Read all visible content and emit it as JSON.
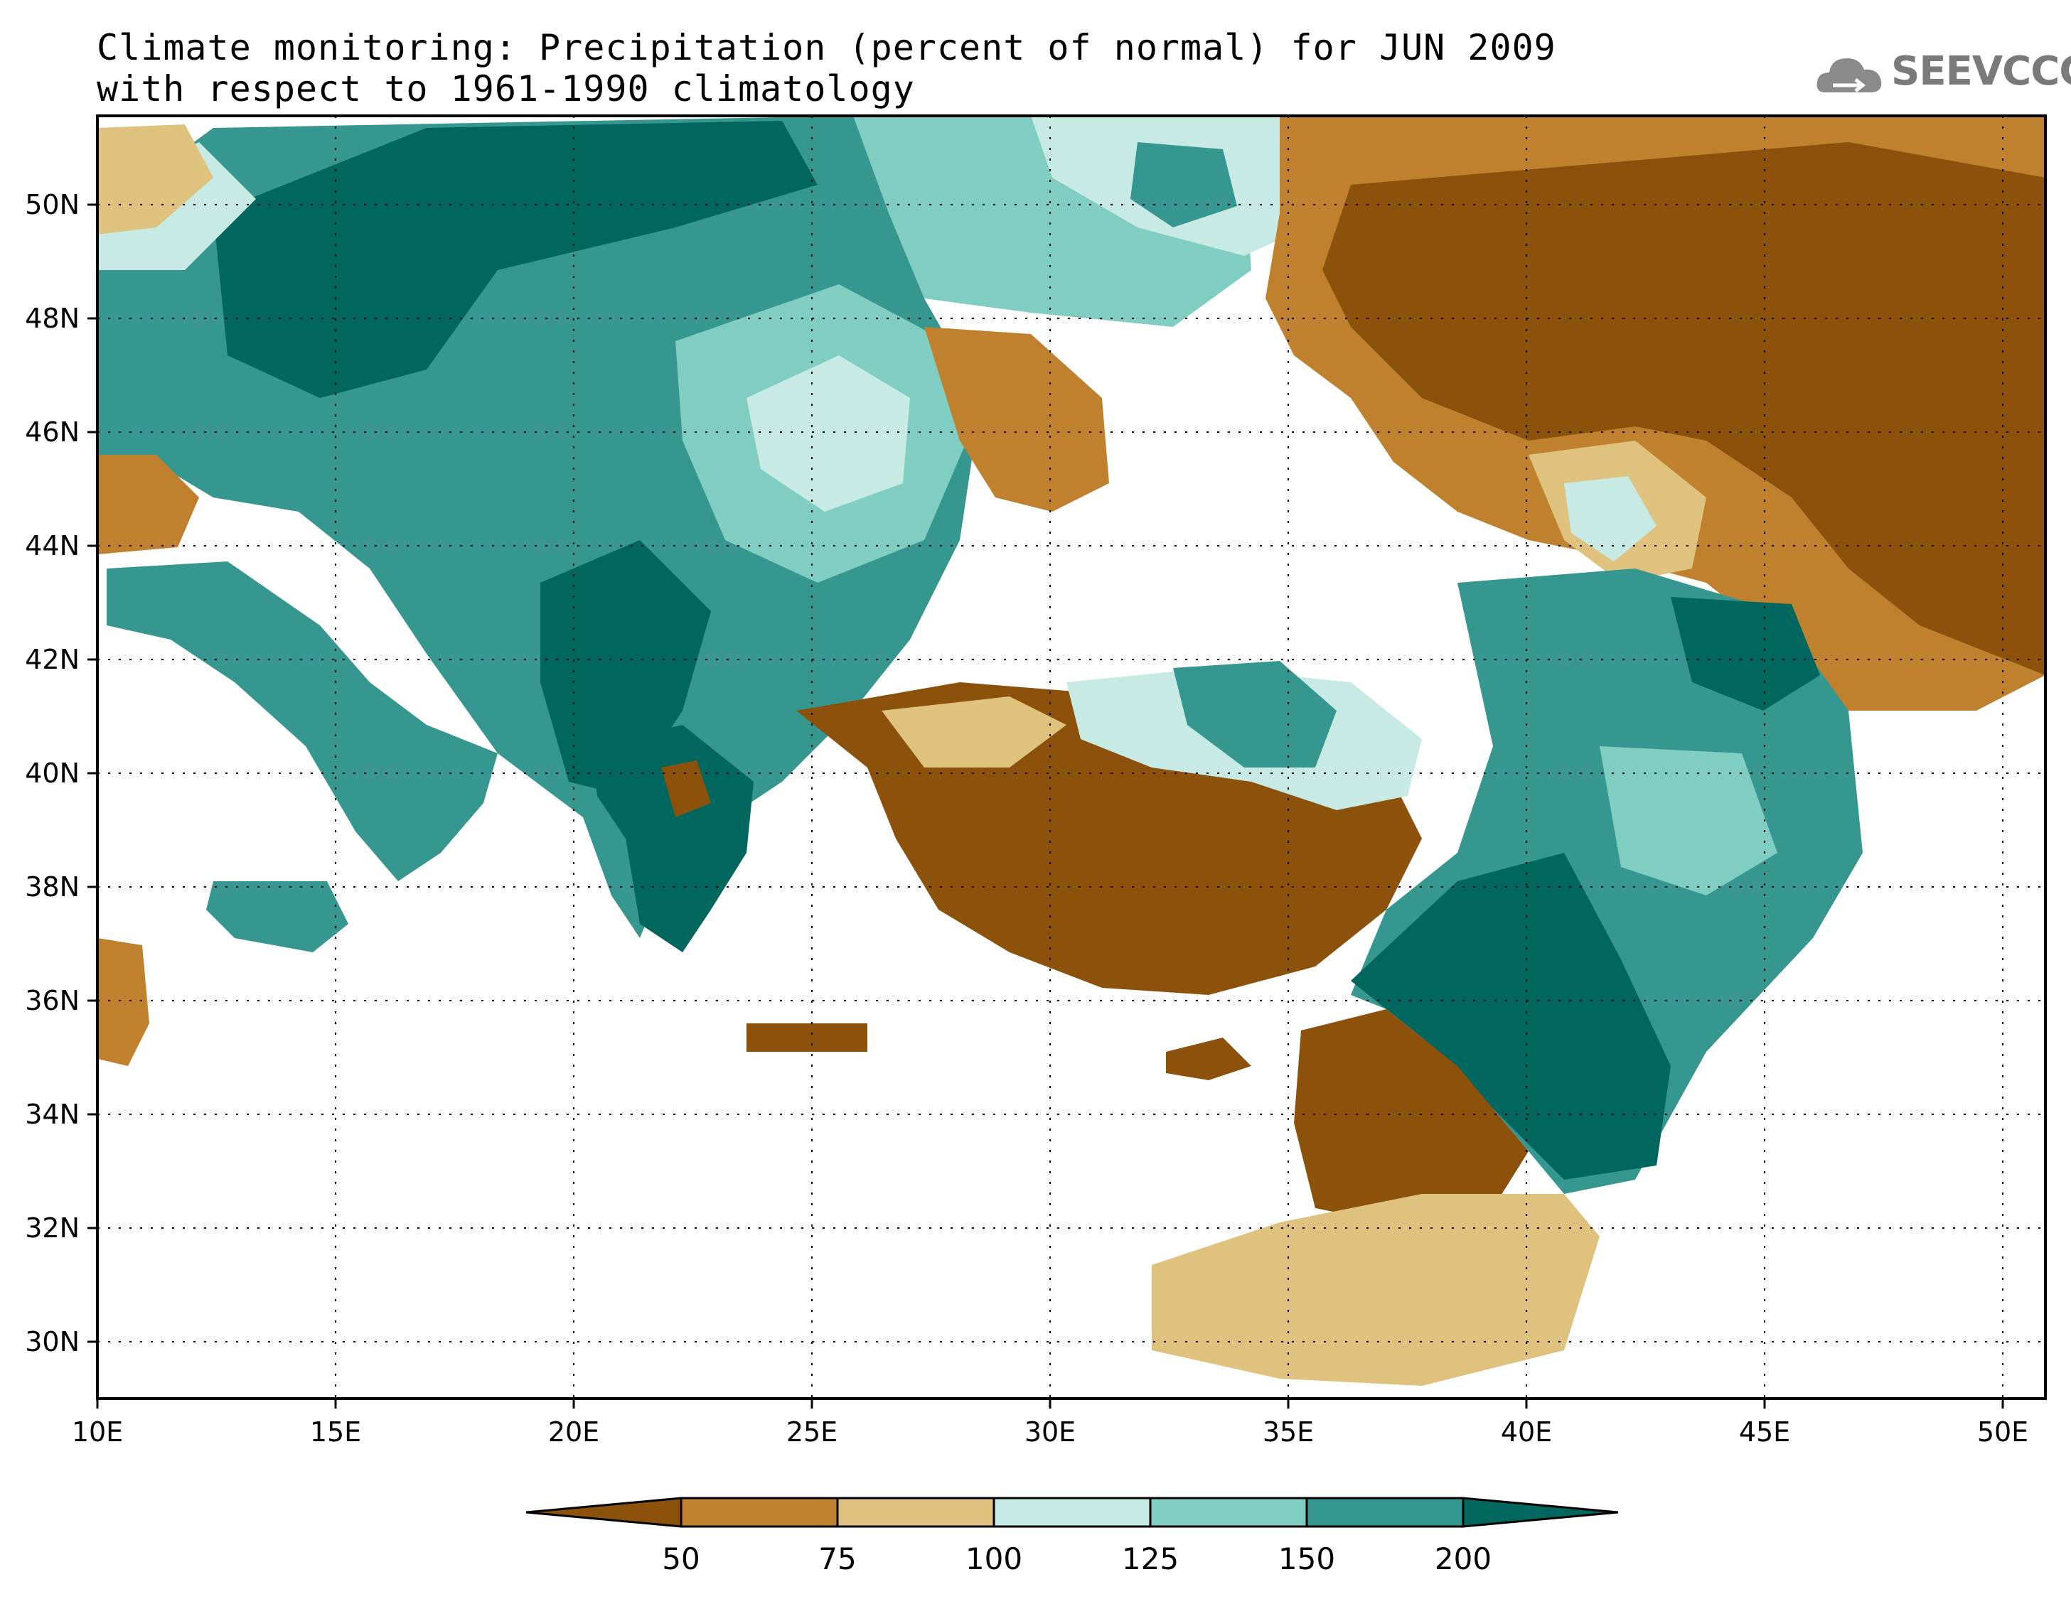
{
  "title": {
    "line1": "Climate monitoring: Precipitation (percent of normal) for JUN 2009",
    "line2": "with respect to 1961-1990 climatology"
  },
  "logo": {
    "text": "SEEVCCC",
    "icon": "cloud-icon"
  },
  "map": {
    "lon_ticks": [
      "10E",
      "15E",
      "20E",
      "25E",
      "30E",
      "35E",
      "40E",
      "45E",
      "50E"
    ],
    "lat_ticks": [
      "30N",
      "32N",
      "34N",
      "36N",
      "38N",
      "40N",
      "42N",
      "44N",
      "46N",
      "48N",
      "50N"
    ],
    "lon_range": [
      10,
      51
    ],
    "lat_range": [
      29,
      51.5
    ],
    "grid": "dotted"
  },
  "colorbar": {
    "labels": [
      "50",
      "75",
      "100",
      "125",
      "150",
      "200"
    ],
    "colors": [
      "#8c510a",
      "#bf812d",
      "#dfc27d",
      "#c7eae5",
      "#80cdc1",
      "#35978f",
      "#01665e"
    ]
  }
}
